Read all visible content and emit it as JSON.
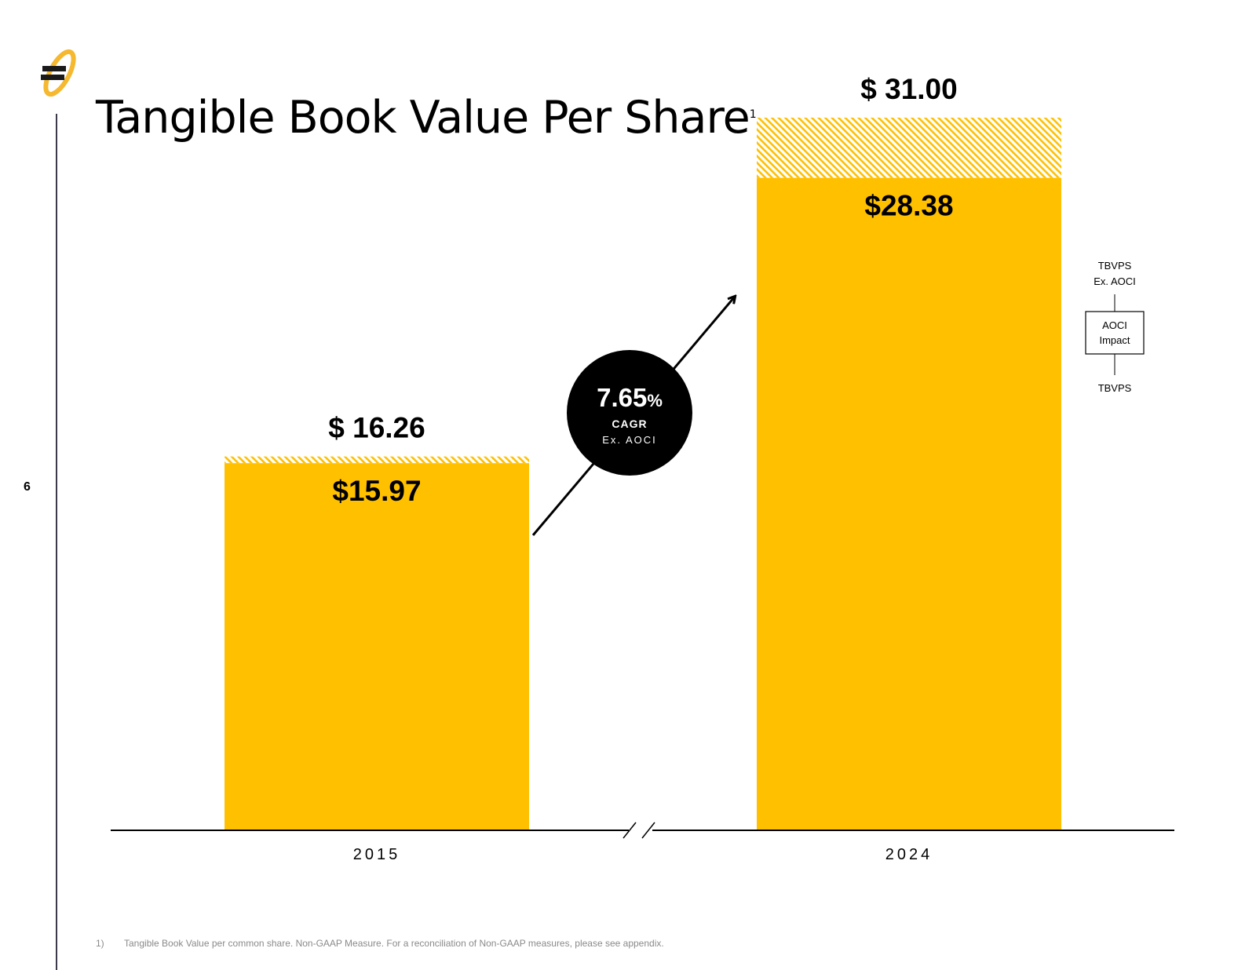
{
  "slide": {
    "title": "Tangible Book Value Per Share",
    "title_footnote_ref": "1",
    "page_number": "6"
  },
  "colors": {
    "bar": "#FFC000",
    "hatch": "#FFC000",
    "badge": "#000000",
    "axis": "#000000",
    "footnote": "#8a8a8a"
  },
  "chart_data": {
    "type": "bar",
    "categories": [
      "2015",
      "2024"
    ],
    "series": [
      {
        "values": [
          15.97,
          28.38
        ]
      },
      {
        "values": [
          16.26,
          31.0
        ]
      }
    ],
    "value_labels": {
      "tbvps": [
        "$15.97",
        "$28.38"
      ],
      "ex_aoci": [
        "$ 16.26",
        "$ 31.00"
      ]
    },
    "ylim": [
      0,
      34
    ],
    "axis_break": true,
    "cagr": {
      "value": "7.65",
      "unit": "%",
      "label": "CAGR",
      "sublabel": "Ex. AOCI"
    },
    "legend": {
      "top": "TBVPS\nEx. AOCI",
      "top_lines": [
        "TBVPS",
        "Ex. AOCI"
      ],
      "box_lines": [
        "AOCI",
        "Impact"
      ],
      "bottom": "TBVPS",
      "placement": "right"
    }
  },
  "footnote": {
    "number": "1)",
    "text": "Tangible Book Value per common share. Non-GAAP Measure. For a reconciliation of Non-GAAP measures, please see appendix."
  }
}
